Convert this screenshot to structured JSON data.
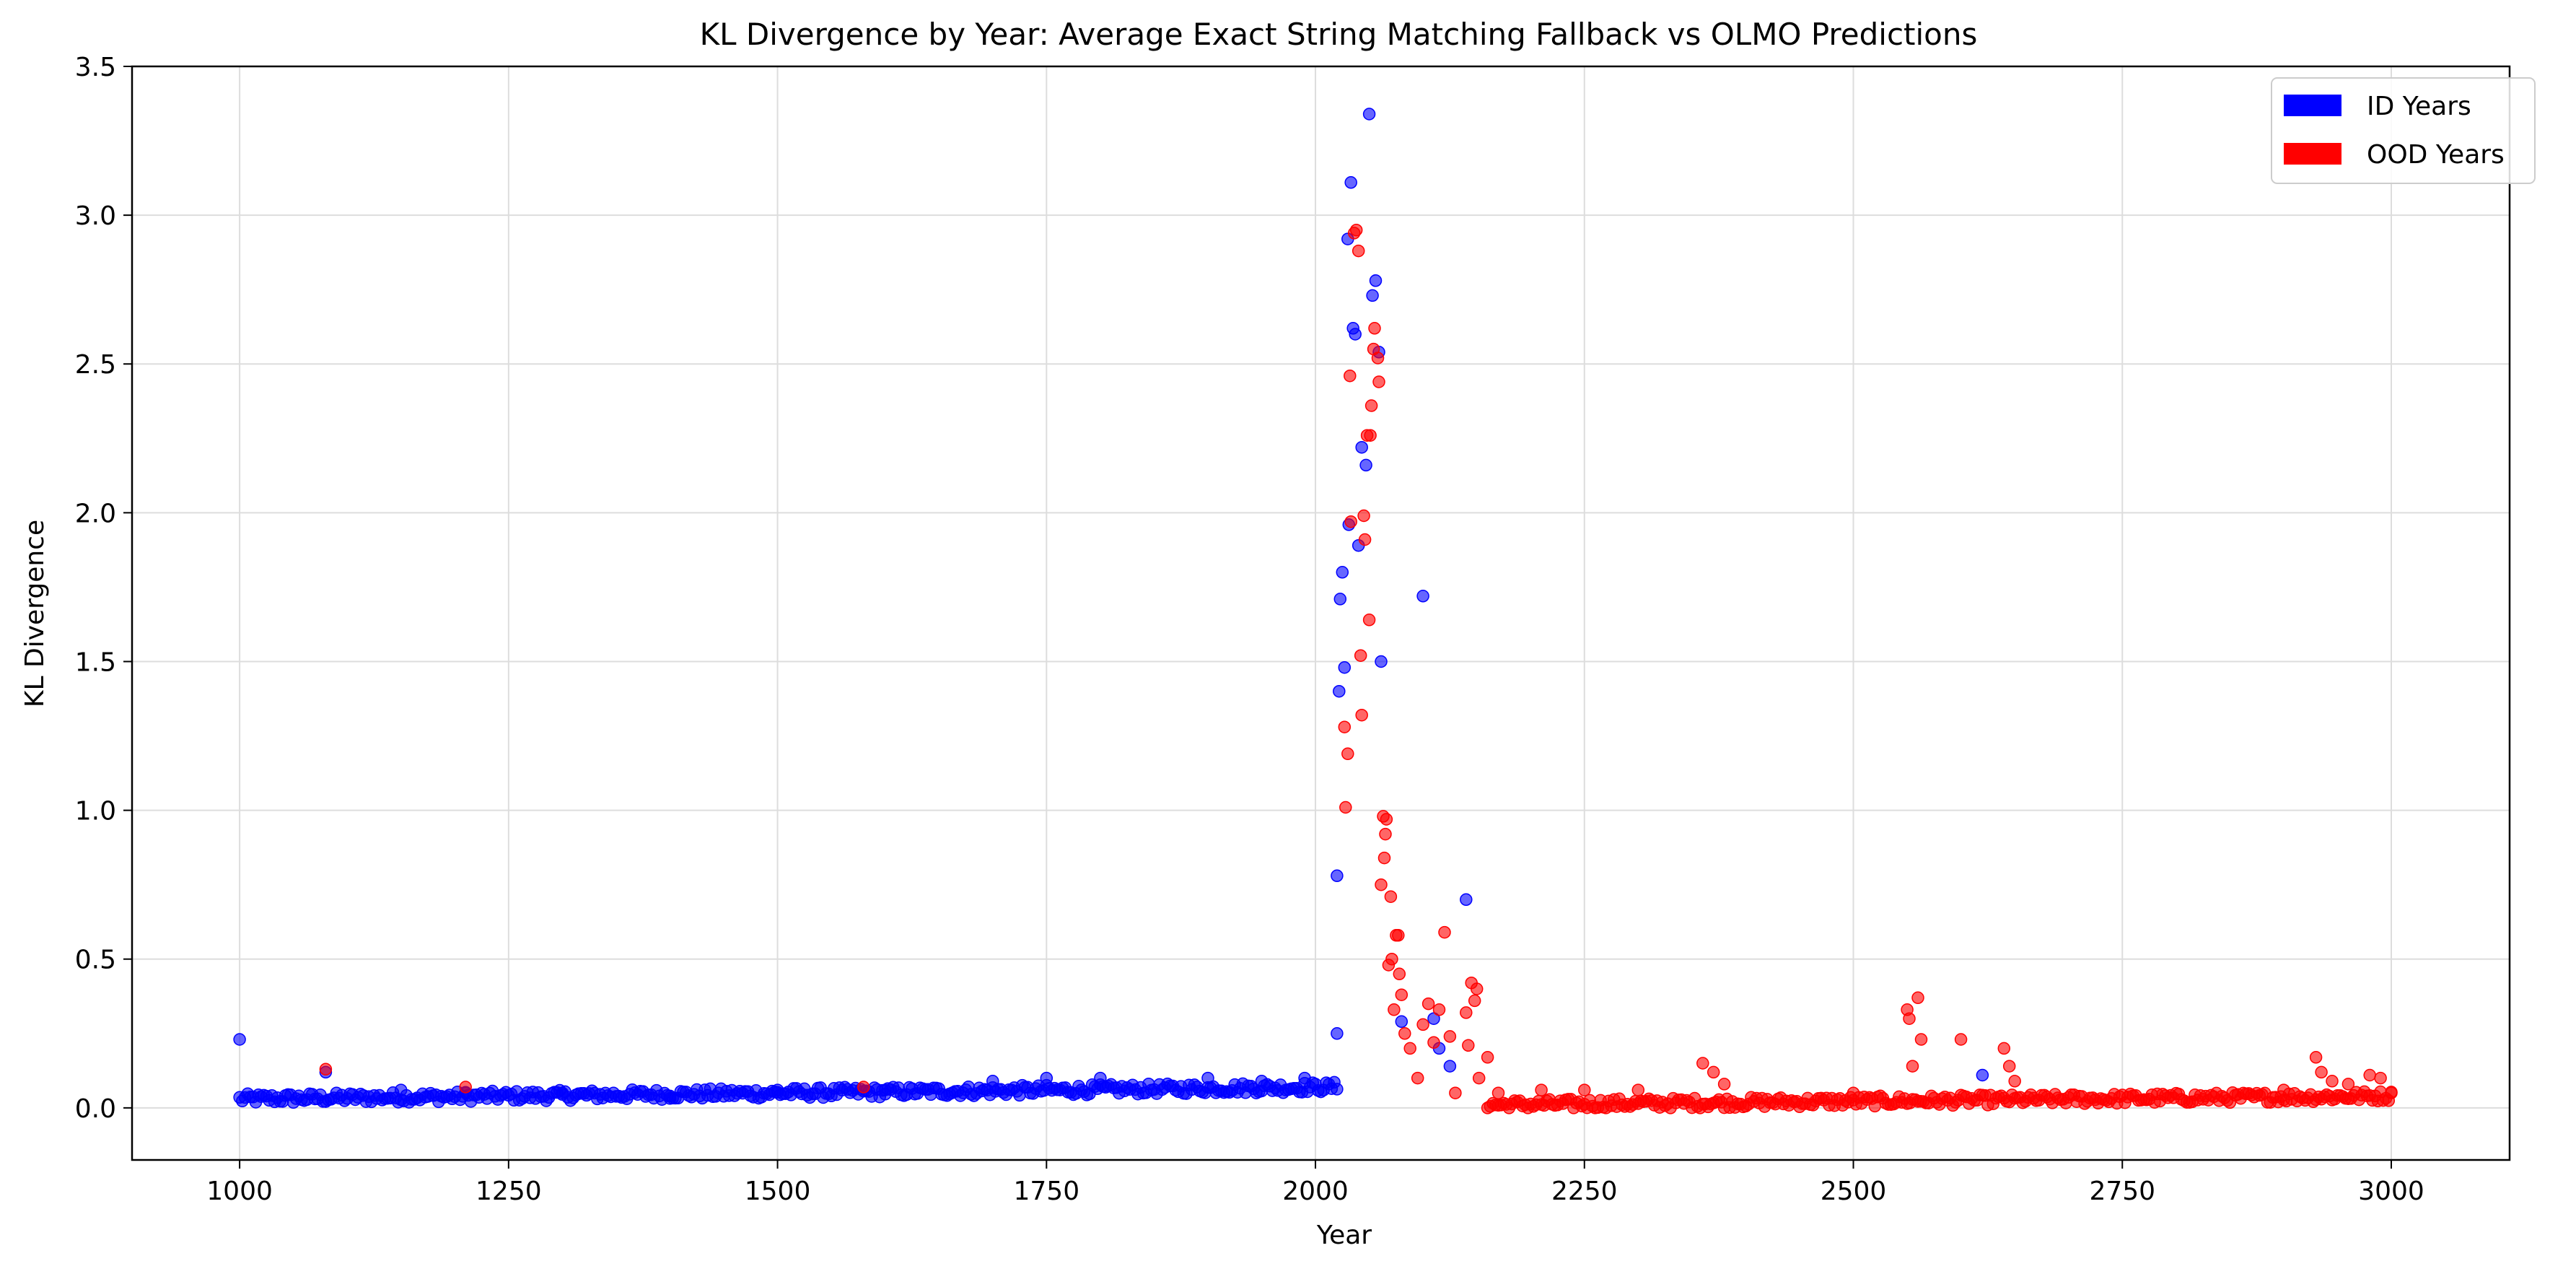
{
  "chart_data": {
    "type": "scatter",
    "title": "KL Divergence by Year: Average Exact String Matching Fallback vs OLMO Predictions",
    "xlabel": "Year",
    "ylabel": "KL Divergence",
    "xlim": [
      900,
      3110
    ],
    "ylim": [
      -0.175,
      3.5
    ],
    "xticks": [
      "1000",
      "1250",
      "1500",
      "1750",
      "2000",
      "2250",
      "2500",
      "2750",
      "3000"
    ],
    "yticks": [
      "0.0",
      "0.5",
      "1.0",
      "1.5",
      "2.0",
      "2.5",
      "3.0",
      "3.5"
    ],
    "grid": true,
    "legend_position": "top-right",
    "colors": {
      "id": "#0000ff",
      "ood": "#ff0000"
    },
    "series": [
      {
        "name": "ID Years",
        "color": "#0000ff",
        "points": [
          [
            1000,
            0.23
          ],
          [
            1080,
            0.12
          ],
          [
            1150,
            0.06
          ],
          [
            1210,
            0.05
          ],
          [
            1300,
            0.05
          ],
          [
            1400,
            0.04
          ],
          [
            1500,
            0.06
          ],
          [
            1600,
            0.06
          ],
          [
            1700,
            0.09
          ],
          [
            1750,
            0.1
          ],
          [
            1800,
            0.1
          ],
          [
            1900,
            0.1
          ],
          [
            1950,
            0.09
          ],
          [
            1990,
            0.1
          ],
          [
            2020,
            0.25
          ],
          [
            2020,
            0.78
          ],
          [
            2022,
            1.4
          ],
          [
            2023,
            1.71
          ],
          [
            2025,
            1.8
          ],
          [
            2027,
            1.48
          ],
          [
            2030,
            2.92
          ],
          [
            2031,
            1.96
          ],
          [
            2033,
            3.11
          ],
          [
            2035,
            2.62
          ],
          [
            2037,
            2.6
          ],
          [
            2040,
            1.89
          ],
          [
            2043,
            2.22
          ],
          [
            2047,
            2.16
          ],
          [
            2050,
            3.34
          ],
          [
            2053,
            2.73
          ],
          [
            2056,
            2.78
          ],
          [
            2059,
            2.54
          ],
          [
            2061,
            1.5
          ],
          [
            2080,
            0.29
          ],
          [
            2100,
            1.72
          ],
          [
            2110,
            0.3
          ],
          [
            2115,
            0.2
          ],
          [
            2125,
            0.14
          ],
          [
            2140,
            0.7
          ],
          [
            2620,
            0.11
          ]
        ],
        "band": {
          "x_start": 1000,
          "x_end": 2020,
          "y_start": 0.03,
          "y_end": 0.07
        }
      },
      {
        "name": "OOD Years",
        "color": "#ff0000",
        "points": [
          [
            1080,
            0.13
          ],
          [
            1210,
            0.07
          ],
          [
            1580,
            0.07
          ],
          [
            2027,
            1.28
          ],
          [
            2028,
            1.01
          ],
          [
            2030,
            1.19
          ],
          [
            2032,
            2.46
          ],
          [
            2033,
            1.97
          ],
          [
            2036,
            2.94
          ],
          [
            2038,
            2.95
          ],
          [
            2040,
            2.88
          ],
          [
            2042,
            1.52
          ],
          [
            2043,
            1.32
          ],
          [
            2045,
            1.99
          ],
          [
            2046,
            1.91
          ],
          [
            2048,
            2.26
          ],
          [
            2050,
            1.64
          ],
          [
            2051,
            2.26
          ],
          [
            2052,
            2.36
          ],
          [
            2054,
            2.55
          ],
          [
            2055,
            2.62
          ],
          [
            2058,
            2.52
          ],
          [
            2059,
            2.44
          ],
          [
            2061,
            0.75
          ],
          [
            2063,
            0.98
          ],
          [
            2064,
            0.84
          ],
          [
            2065,
            0.92
          ],
          [
            2066,
            0.97
          ],
          [
            2068,
            0.48
          ],
          [
            2070,
            0.71
          ],
          [
            2071,
            0.5
          ],
          [
            2073,
            0.33
          ],
          [
            2075,
            0.58
          ],
          [
            2077,
            0.58
          ],
          [
            2078,
            0.45
          ],
          [
            2080,
            0.38
          ],
          [
            2083,
            0.25
          ],
          [
            2088,
            0.2
          ],
          [
            2095,
            0.1
          ],
          [
            2100,
            0.28
          ],
          [
            2105,
            0.35
          ],
          [
            2110,
            0.22
          ],
          [
            2115,
            0.33
          ],
          [
            2120,
            0.59
          ],
          [
            2125,
            0.24
          ],
          [
            2130,
            0.05
          ],
          [
            2140,
            0.32
          ],
          [
            2142,
            0.21
          ],
          [
            2145,
            0.42
          ],
          [
            2148,
            0.36
          ],
          [
            2150,
            0.4
          ],
          [
            2152,
            0.1
          ],
          [
            2160,
            0.17
          ],
          [
            2170,
            0.05
          ],
          [
            2210,
            0.06
          ],
          [
            2250,
            0.06
          ],
          [
            2300,
            0.06
          ],
          [
            2360,
            0.15
          ],
          [
            2370,
            0.12
          ],
          [
            2380,
            0.08
          ],
          [
            2500,
            0.05
          ],
          [
            2550,
            0.33
          ],
          [
            2552,
            0.3
          ],
          [
            2555,
            0.14
          ],
          [
            2560,
            0.37
          ],
          [
            2563,
            0.23
          ],
          [
            2600,
            0.23
          ],
          [
            2640,
            0.2
          ],
          [
            2645,
            0.14
          ],
          [
            2650,
            0.09
          ],
          [
            2900,
            0.06
          ],
          [
            2930,
            0.17
          ],
          [
            2935,
            0.12
          ],
          [
            2945,
            0.09
          ],
          [
            2960,
            0.08
          ],
          [
            2980,
            0.11
          ],
          [
            2990,
            0.1
          ],
          [
            3000,
            0.05
          ]
        ],
        "band": {
          "x_start": 2160,
          "x_end": 3000,
          "y_start": 0.01,
          "y_end": 0.04
        }
      }
    ]
  }
}
